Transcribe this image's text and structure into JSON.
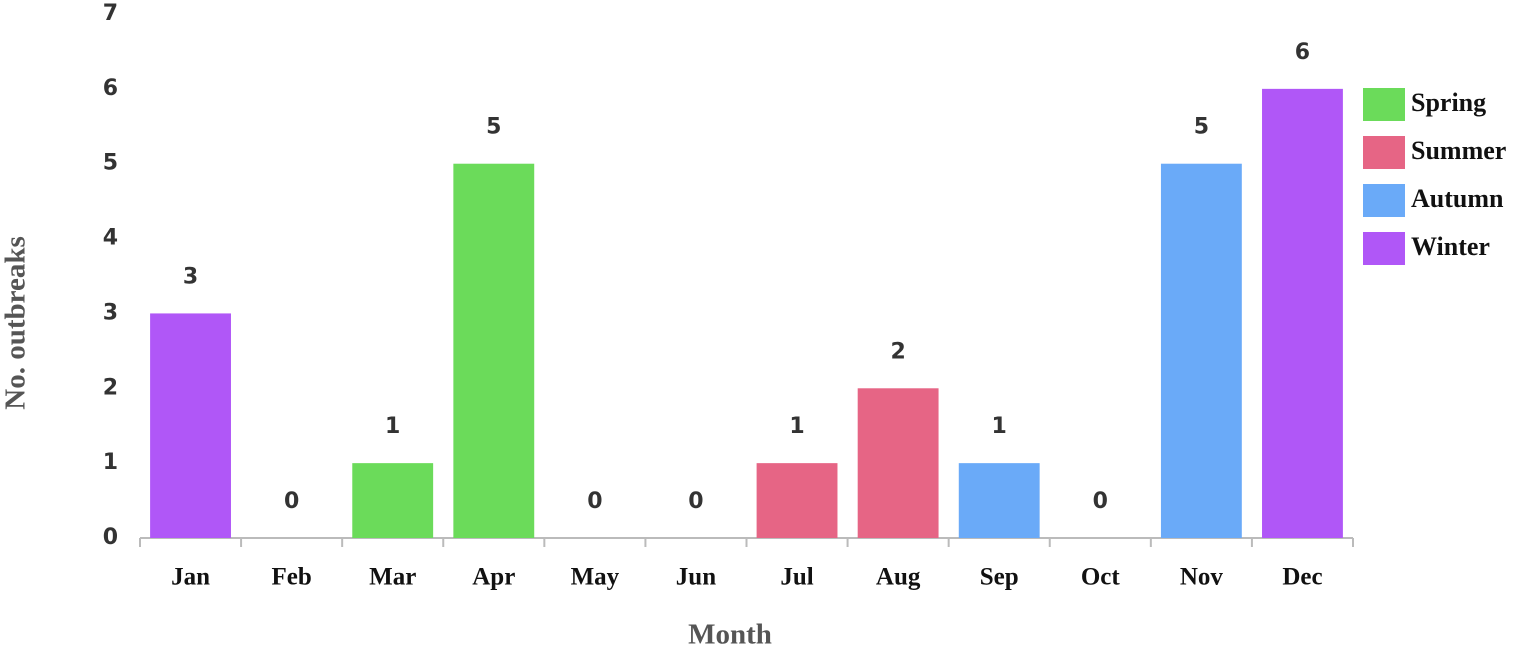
{
  "chart_data": {
    "type": "bar",
    "x_label": "Month",
    "y_label": "No. outbreaks",
    "categories": [
      "Jan",
      "Feb",
      "Mar",
      "Apr",
      "May",
      "Jun",
      "Jul",
      "Aug",
      "Sep",
      "Oct",
      "Nov",
      "Dec"
    ],
    "series": [
      {
        "name": "Spring",
        "color": "#6bdb5a",
        "values": [
          null,
          null,
          1,
          5,
          0,
          null,
          null,
          null,
          null,
          null,
          null,
          null
        ]
      },
      {
        "name": "Summer",
        "color": "#e66585",
        "values": [
          null,
          null,
          null,
          null,
          null,
          0,
          1,
          2,
          null,
          null,
          null,
          null
        ]
      },
      {
        "name": "Autumn",
        "color": "#6aaaf8",
        "values": [
          null,
          null,
          null,
          null,
          null,
          null,
          null,
          null,
          1,
          0,
          5,
          null
        ]
      },
      {
        "name": "Winter",
        "color": "#b057f7",
        "values": [
          3,
          0,
          null,
          null,
          null,
          null,
          null,
          null,
          null,
          null,
          null,
          6
        ]
      }
    ],
    "ylim": [
      0,
      7
    ],
    "yticks": [
      0,
      1,
      2,
      3,
      4,
      5,
      6,
      7
    ],
    "grid": false,
    "legend": "right"
  }
}
